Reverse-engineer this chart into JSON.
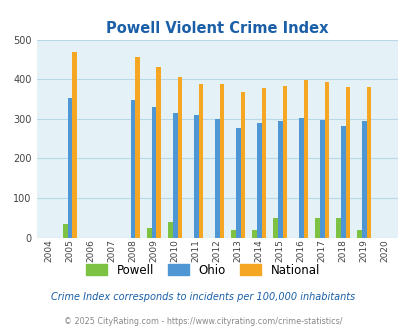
{
  "title": "Powell Violent Crime Index",
  "years": [
    2004,
    2005,
    2006,
    2007,
    2008,
    2009,
    2010,
    2011,
    2012,
    2013,
    2014,
    2015,
    2016,
    2017,
    2018,
    2019,
    2020
  ],
  "powell": [
    0,
    35,
    0,
    0,
    0,
    25,
    40,
    0,
    0,
    18,
    18,
    50,
    0,
    50,
    50,
    18,
    0
  ],
  "ohio": [
    0,
    352,
    0,
    0,
    348,
    330,
    315,
    309,
    300,
    278,
    290,
    295,
    301,
    297,
    281,
    294,
    0
  ],
  "national": [
    0,
    469,
    0,
    0,
    455,
    432,
    406,
    389,
    388,
    368,
    377,
    384,
    398,
    394,
    381,
    380,
    0
  ],
  "powell_color": "#7dc242",
  "ohio_color": "#4e96d4",
  "national_color": "#f5a623",
  "bg_color": "#e4f2f7",
  "grid_color": "#b8d8e8",
  "title_color": "#1a5fa8",
  "ylim": [
    0,
    500
  ],
  "yticks": [
    0,
    100,
    200,
    300,
    400,
    500
  ],
  "subtitle": "Crime Index corresponds to incidents per 100,000 inhabitants",
  "footer": "© 2025 CityRating.com - https://www.cityrating.com/crime-statistics/",
  "subtitle_color": "#1a5fa8",
  "footer_color": "#888888",
  "footer_link_color": "#4e96d4"
}
